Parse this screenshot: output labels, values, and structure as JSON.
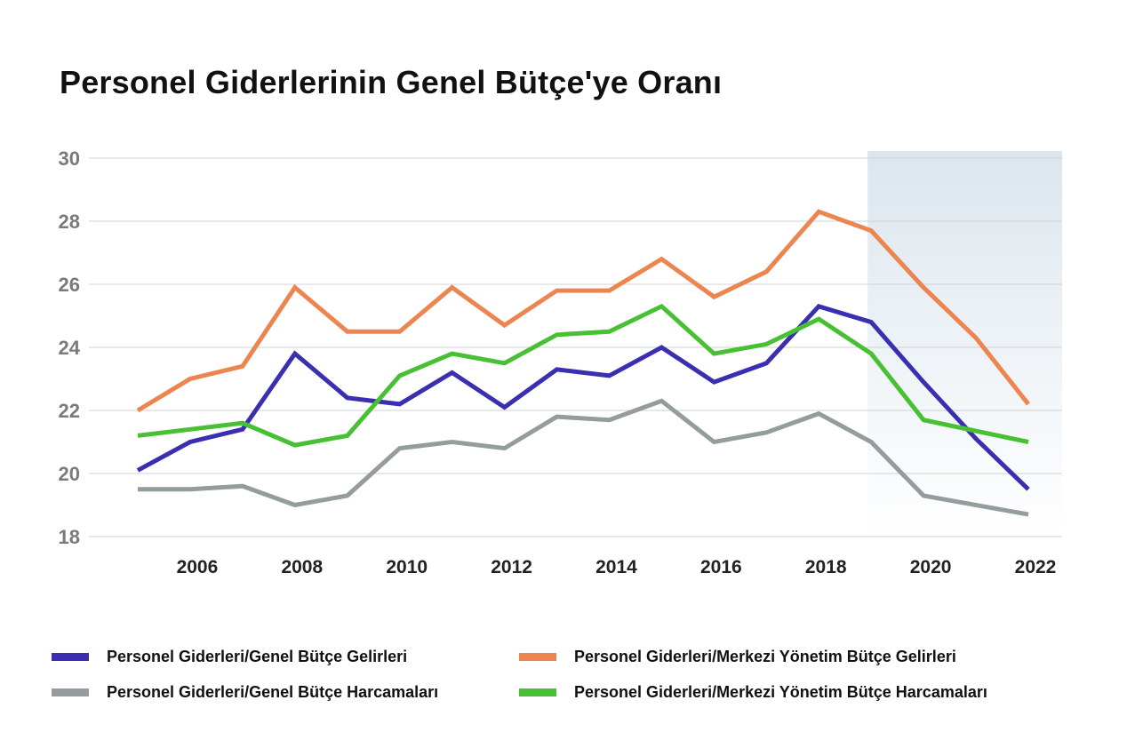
{
  "title": "Personel Giderlerinin Genel Bütçe'ye Oranı",
  "chart_data": {
    "type": "line",
    "title": "Personel Giderlerinin Genel Bütçe'ye Oranı",
    "xlabel": "",
    "ylabel": "",
    "ylim": [
      18,
      30
    ],
    "yticks": [
      "18",
      "20",
      "22",
      "24",
      "26",
      "28",
      "30"
    ],
    "xtick_labels": [
      "2006",
      "2008",
      "2010",
      "2012",
      "2014",
      "2016",
      "2018",
      "2020",
      "2022"
    ],
    "x": [
      2005,
      2006,
      2007,
      2008,
      2009,
      2010,
      2011,
      2012,
      2013,
      2014,
      2015,
      2016,
      2017,
      2018,
      2019,
      2020,
      2021,
      2022
    ],
    "grid": "horizontal",
    "legend_position": "bottom",
    "highlight_range": [
      2019,
      2023
    ],
    "series": [
      {
        "name": "Personel Giderleri/Genel Bütçe Gelirleri",
        "color": "#3a2fb0",
        "values": [
          20.1,
          21.0,
          21.4,
          23.8,
          22.4,
          22.2,
          23.2,
          22.1,
          23.3,
          23.1,
          24.0,
          22.9,
          23.5,
          25.3,
          24.8,
          22.9,
          21.1,
          19.5
        ]
      },
      {
        "name": "Personel Giderleri/Merkezi Yönetim Bütçe Gelirleri",
        "color": "#ec8550",
        "values": [
          22.0,
          23.0,
          23.4,
          25.9,
          24.5,
          24.5,
          25.9,
          24.7,
          25.8,
          25.8,
          26.8,
          25.6,
          26.4,
          28.3,
          27.7,
          25.9,
          24.3,
          22.2
        ]
      },
      {
        "name": "Personel Giderleri/Genel Bütçe Harcamaları",
        "color": "#959c9d",
        "values": [
          19.5,
          19.5,
          19.6,
          19.0,
          19.3,
          20.8,
          21.0,
          20.8,
          21.8,
          21.7,
          22.3,
          21.0,
          21.3,
          21.9,
          21.0,
          19.3,
          null,
          18.7
        ]
      },
      {
        "name": "Personel Giderleri/Merkezi Yönetim Bütçe Harcamaları",
        "color": "#47c033",
        "values": [
          21.2,
          21.4,
          21.6,
          20.9,
          21.2,
          23.1,
          23.8,
          23.5,
          24.4,
          24.5,
          25.3,
          23.8,
          24.1,
          24.9,
          23.8,
          21.7,
          null,
          21.0
        ]
      }
    ]
  }
}
